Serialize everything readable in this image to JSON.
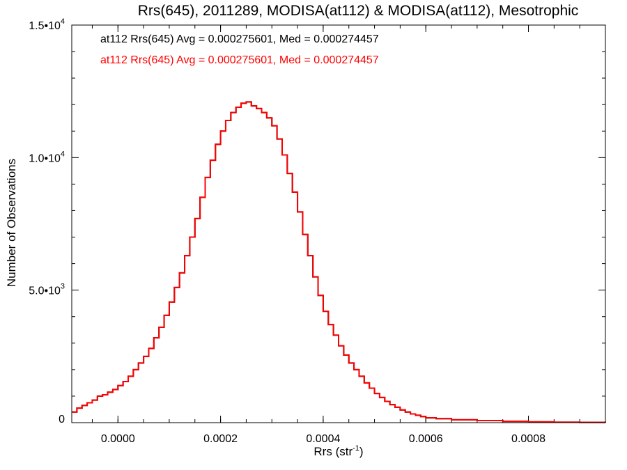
{
  "chart_data": {
    "type": "histogram",
    "title": "Rrs(645), 2011289, MODISA(at112) & MODISA(at112), Mesotrophic",
    "xlabel": "Rrs (str",
    "xlabel_sup": "-1",
    "xlabel_tail": ")",
    "ylabel": "Number of Observations",
    "xlim": [
      -9e-05,
      0.00095
    ],
    "ylim": [
      0,
      15000
    ],
    "grid": false,
    "x_ticks": [
      {
        "value": 0.0,
        "label": "0.0000"
      },
      {
        "value": 0.0002,
        "label": "0.0002"
      },
      {
        "value": 0.0004,
        "label": "0.0004"
      },
      {
        "value": 0.0006,
        "label": "0.0006"
      },
      {
        "value": 0.0008,
        "label": "0.0008"
      }
    ],
    "y_ticks": [
      {
        "value": 0,
        "label": "0",
        "sup": ""
      },
      {
        "value": 5000,
        "label": "5.0•10",
        "sup": "3"
      },
      {
        "value": 10000,
        "label": "1.0•10",
        "sup": "4"
      },
      {
        "value": 15000,
        "label": "1.5•10",
        "sup": "4"
      }
    ],
    "annotations": [
      {
        "text": "at112 Rrs(645) Avg = 0.000275601, Med = 0.000274457",
        "color": "#000000"
      },
      {
        "text": "at112 Rrs(645) Avg = 0.000275601, Med = 0.000274457",
        "color": "#ff0000"
      }
    ],
    "series": [
      {
        "color": "#000000"
      },
      {
        "color": "#ff0000"
      }
    ],
    "x": [
      -9e-05,
      -8e-05,
      -7e-05,
      -6e-05,
      -5e-05,
      -4e-05,
      -3e-05,
      -2e-05,
      -1e-05,
      0.0,
      1e-05,
      2e-05,
      3e-05,
      4e-05,
      5e-05,
      6e-05,
      7e-05,
      8e-05,
      9e-05,
      0.0001,
      0.00011,
      0.00012,
      0.00013,
      0.00014,
      0.00015,
      0.00016,
      0.00017,
      0.00018,
      0.00019,
      0.0002,
      0.00021,
      0.00022,
      0.00023,
      0.00024,
      0.00025,
      0.00026,
      0.00027,
      0.00028,
      0.00029,
      0.0003,
      0.00031,
      0.00032,
      0.00033,
      0.00034,
      0.00035,
      0.00036,
      0.00037,
      0.00038,
      0.00039,
      0.0004,
      0.00041,
      0.00042,
      0.00043,
      0.00044,
      0.00045,
      0.00046,
      0.00047,
      0.00048,
      0.00049,
      0.0005,
      0.00051,
      0.00052,
      0.00053,
      0.00054,
      0.00055,
      0.00056,
      0.00057,
      0.00058,
      0.00059,
      0.0006,
      0.00062,
      0.00065,
      0.0007,
      0.00075,
      0.0008,
      0.00085,
      0.0009,
      0.00095
    ],
    "values": [
      400,
      550,
      650,
      750,
      850,
      1000,
      1050,
      1150,
      1250,
      1400,
      1550,
      1750,
      2000,
      2250,
      2500,
      2800,
      3200,
      3600,
      4050,
      4550,
      5100,
      5650,
      6300,
      7000,
      7700,
      8500,
      9250,
      9900,
      10500,
      11000,
      11400,
      11700,
      11900,
      12050,
      12100,
      11950,
      11850,
      11700,
      11500,
      11200,
      10700,
      10100,
      9400,
      8700,
      7950,
      7100,
      6300,
      5500,
      4800,
      4200,
      3700,
      3300,
      2900,
      2550,
      2250,
      2000,
      1750,
      1500,
      1300,
      1100,
      950,
      800,
      680,
      580,
      480,
      400,
      330,
      280,
      230,
      180,
      150,
      110,
      80,
      50,
      30,
      15,
      10,
      5
    ]
  }
}
